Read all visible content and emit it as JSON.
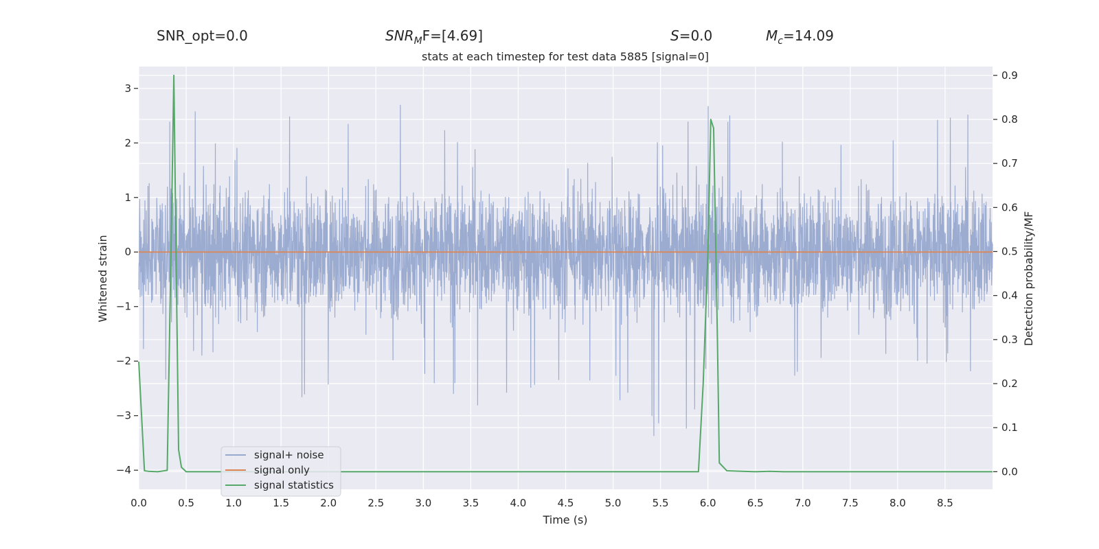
{
  "header": {
    "snr_opt": "SNR_opt=0.0",
    "snr_mf_sym": "SNR",
    "snr_mf_sub": "M",
    "snr_mf_rest": "F=[4.69]",
    "s_sym": "S",
    "s_rest": "=0.0",
    "mc_sym": "M",
    "mc_sub": "c",
    "mc_rest": "=14.09"
  },
  "chart_data": {
    "type": "line",
    "title": "stats at each timestep for test data 5885 [signal=0]",
    "xlabel": "Time (s)",
    "ylabel": "Whitened strain",
    "ylabel_right": "Detection probability/MF",
    "xlim": [
      0.0,
      9.0
    ],
    "ylim": [
      -4.35,
      3.4
    ],
    "ylim_right": [
      -0.04,
      0.92
    ],
    "x_ticks": [
      "0.0",
      "0.5",
      "1.0",
      "1.5",
      "2.0",
      "2.5",
      "3.0",
      "3.5",
      "4.0",
      "4.5",
      "5.0",
      "5.5",
      "6.0",
      "6.5",
      "7.0",
      "7.5",
      "8.0",
      "8.5"
    ],
    "y_ticks": [
      "3",
      "2",
      "1",
      "0",
      "−1",
      "−2",
      "−3",
      "−4"
    ],
    "y_ticks_right": [
      "0.9",
      "0.8",
      "0.7",
      "0.6",
      "0.5",
      "0.4",
      "0.3",
      "0.2",
      "0.1",
      "0.0"
    ],
    "legend_position": "lower-left",
    "grid": true,
    "series": [
      {
        "name": "signal+ noise",
        "color": "#98a9cf",
        "axis": "left",
        "envelope": {
          "x": [
            0.0,
            0.3,
            0.37,
            0.45,
            1.0,
            1.2,
            1.8,
            2.1,
            2.8,
            3.5,
            4.0,
            4.5,
            5.0,
            5.7,
            6.0,
            6.5,
            7.0,
            7.5,
            8.0,
            8.5,
            9.0
          ],
          "upper": [
            1.5,
            2.4,
            2.9,
            2.9,
            1.7,
            2.9,
            2.3,
            2.5,
            3.05,
            1.9,
            2.6,
            1.8,
            1.9,
            2.2,
            2.85,
            2.1,
            2.0,
            2.2,
            2.3,
            2.6,
            2.65
          ],
          "lower": [
            -1.7,
            -2.7,
            -2.1,
            -2.0,
            -2.0,
            -2.2,
            -2.8,
            -2.7,
            -2.2,
            -2.9,
            -2.5,
            -2.7,
            -2.6,
            -4.0,
            -2.2,
            -2.4,
            -2.3,
            -2.0,
            -2.2,
            -2.1,
            -2.3
          ]
        }
      },
      {
        "name": "signal only",
        "color": "#dd8452",
        "axis": "left",
        "x": [
          0.0,
          9.0
        ],
        "y": [
          0.0,
          0.0
        ]
      },
      {
        "name": "signal statistics",
        "color": "#55a868",
        "axis": "right",
        "x": [
          0.0,
          0.06,
          0.1,
          0.2,
          0.3,
          0.34,
          0.37,
          0.39,
          0.42,
          0.45,
          0.5,
          1.0,
          2.0,
          3.0,
          4.0,
          5.0,
          5.9,
          5.95,
          6.0,
          6.03,
          6.06,
          6.1,
          6.12,
          6.2,
          6.5,
          6.65,
          6.8,
          7.0,
          8.0,
          9.0
        ],
        "y": [
          0.25,
          0.002,
          0.001,
          0.0,
          0.003,
          0.5,
          0.9,
          0.55,
          0.05,
          0.01,
          0.0,
          0.0,
          0.0,
          0.0,
          0.0,
          0.0,
          0.0,
          0.2,
          0.5,
          0.8,
          0.78,
          0.3,
          0.02,
          0.002,
          0.0,
          0.001,
          0.0,
          0.0,
          0.0,
          0.0
        ]
      }
    ]
  }
}
